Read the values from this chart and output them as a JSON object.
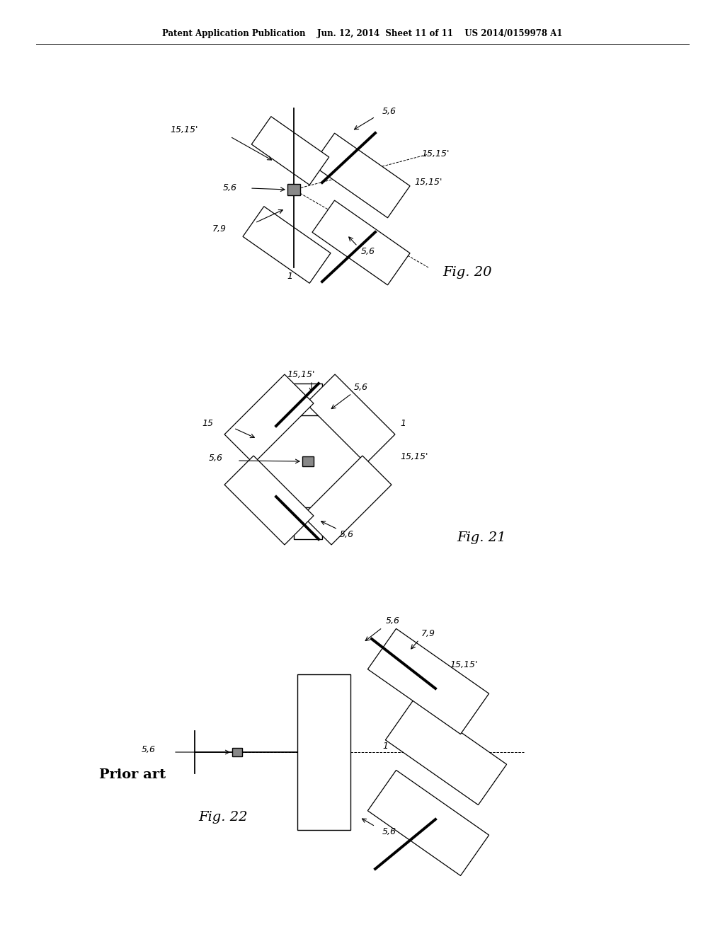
{
  "bg_color": "#ffffff",
  "header_text": "Patent Application Publication    Jun. 12, 2014  Sheet 11 of 11    US 2014/0159978 A1",
  "fig20_label": "Fig. 20",
  "fig21_label": "Fig. 21",
  "fig22_label": "Fig. 22",
  "prior_art_label": "Prior art"
}
